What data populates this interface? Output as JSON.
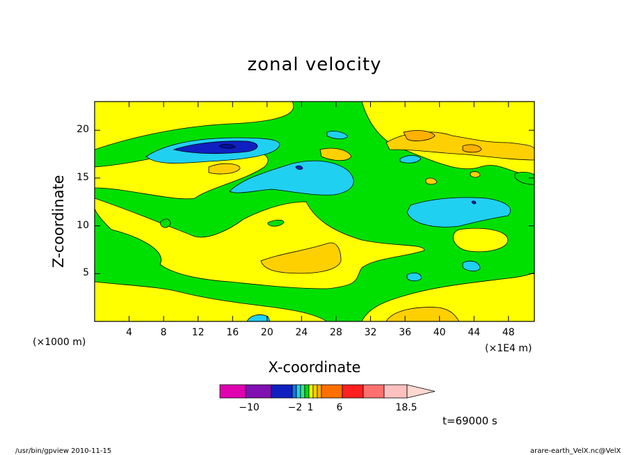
{
  "chart_data": {
    "type": "heatmap",
    "title": "zonal velocity",
    "xlabel": "X-coordinate",
    "ylabel": "Z-coordinate",
    "x_unit": "(×1E4 m)",
    "y_unit": "(×1000 m)",
    "xlim": [
      0,
      51
    ],
    "ylim": [
      0,
      23
    ],
    "x_ticks": [
      "4",
      "8",
      "12",
      "16",
      "20",
      "24",
      "28",
      "32",
      "36",
      "40",
      "44",
      "48"
    ],
    "y_ticks": [
      "5",
      "10",
      "15",
      "20"
    ],
    "x_tick_values": [
      4,
      8,
      12,
      16,
      20,
      24,
      28,
      32,
      36,
      40,
      44,
      48
    ],
    "y_tick_values": [
      5,
      10,
      15,
      20
    ],
    "colorbar": {
      "colors": [
        "#e000b0",
        "#8010b0",
        "#1020c0",
        "#2070e0",
        "#20d0f0",
        "#40e080",
        "#00e000",
        "#ffff00",
        "#ffd000",
        "#ffb000",
        "#ff7000",
        "#ff2020",
        "#ff7070",
        "#ffc0c0"
      ],
      "labels": [
        "−10",
        "−2",
        "1",
        "6",
        "18.5"
      ],
      "label_values": [
        -10,
        -2,
        1,
        6,
        18.5
      ]
    },
    "time_label": "t=69000 s"
  },
  "footer": {
    "left": "/usr/bin/gpview   2010-11-15",
    "right": "arare-earth_VelX.nc@VelX"
  }
}
